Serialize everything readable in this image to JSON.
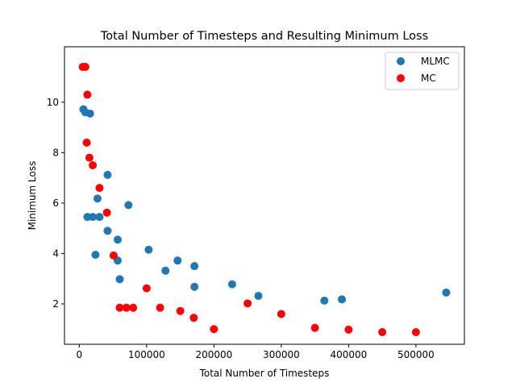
{
  "chart_data": {
    "type": "scatter",
    "title": "Total Number of Timesteps and Resulting Minimum Loss",
    "xlabel": "Total Number of Timesteps",
    "ylabel": "Minimum Loss",
    "xlim": [
      -22000,
      572000
    ],
    "ylim": [
      0.4,
      12.2
    ],
    "xticks": [
      0,
      100000,
      200000,
      300000,
      400000,
      500000
    ],
    "xtick_labels": [
      "0",
      "100000",
      "200000",
      "300000",
      "400000",
      "500000"
    ],
    "yticks": [
      2,
      4,
      6,
      8,
      10
    ],
    "ytick_labels": [
      "2",
      "4",
      "6",
      "8",
      "10"
    ],
    "grid": false,
    "legend_position": "top-right",
    "series": [
      {
        "name": "MLMC",
        "color": "#1f77b4",
        "points": [
          [
            6000,
            9.72
          ],
          [
            9000,
            9.6
          ],
          [
            16000,
            9.55
          ],
          [
            12000,
            5.45
          ],
          [
            20000,
            5.45
          ],
          [
            30000,
            5.45
          ],
          [
            27000,
            6.18
          ],
          [
            24000,
            3.95
          ],
          [
            42000,
            7.12
          ],
          [
            42000,
            4.9
          ],
          [
            57000,
            4.55
          ],
          [
            57000,
            3.72
          ],
          [
            60000,
            2.98
          ],
          [
            73000,
            5.92
          ],
          [
            103000,
            4.15
          ],
          [
            128000,
            3.32
          ],
          [
            146000,
            3.72
          ],
          [
            171000,
            3.5
          ],
          [
            171000,
            2.68
          ],
          [
            227000,
            2.78
          ],
          [
            266000,
            2.32
          ],
          [
            364000,
            2.13
          ],
          [
            390000,
            2.18
          ],
          [
            545000,
            2.45
          ]
        ]
      },
      {
        "name": "MC",
        "color": "#ff0000",
        "points": [
          [
            5000,
            11.4
          ],
          [
            9000,
            11.4
          ],
          [
            12000,
            10.3
          ],
          [
            11000,
            8.4
          ],
          [
            15000,
            7.8
          ],
          [
            20000,
            7.5
          ],
          [
            30000,
            6.6
          ],
          [
            41000,
            5.62
          ],
          [
            51000,
            3.92
          ],
          [
            60000,
            1.85
          ],
          [
            70000,
            1.85
          ],
          [
            80000,
            1.85
          ],
          [
            100000,
            2.62
          ],
          [
            120000,
            1.85
          ],
          [
            150000,
            1.72
          ],
          [
            170000,
            1.45
          ],
          [
            200000,
            1.0
          ],
          [
            250000,
            2.02
          ],
          [
            300000,
            1.6
          ],
          [
            350000,
            1.05
          ],
          [
            400000,
            0.98
          ],
          [
            450000,
            0.88
          ],
          [
            500000,
            0.88
          ]
        ]
      }
    ]
  }
}
